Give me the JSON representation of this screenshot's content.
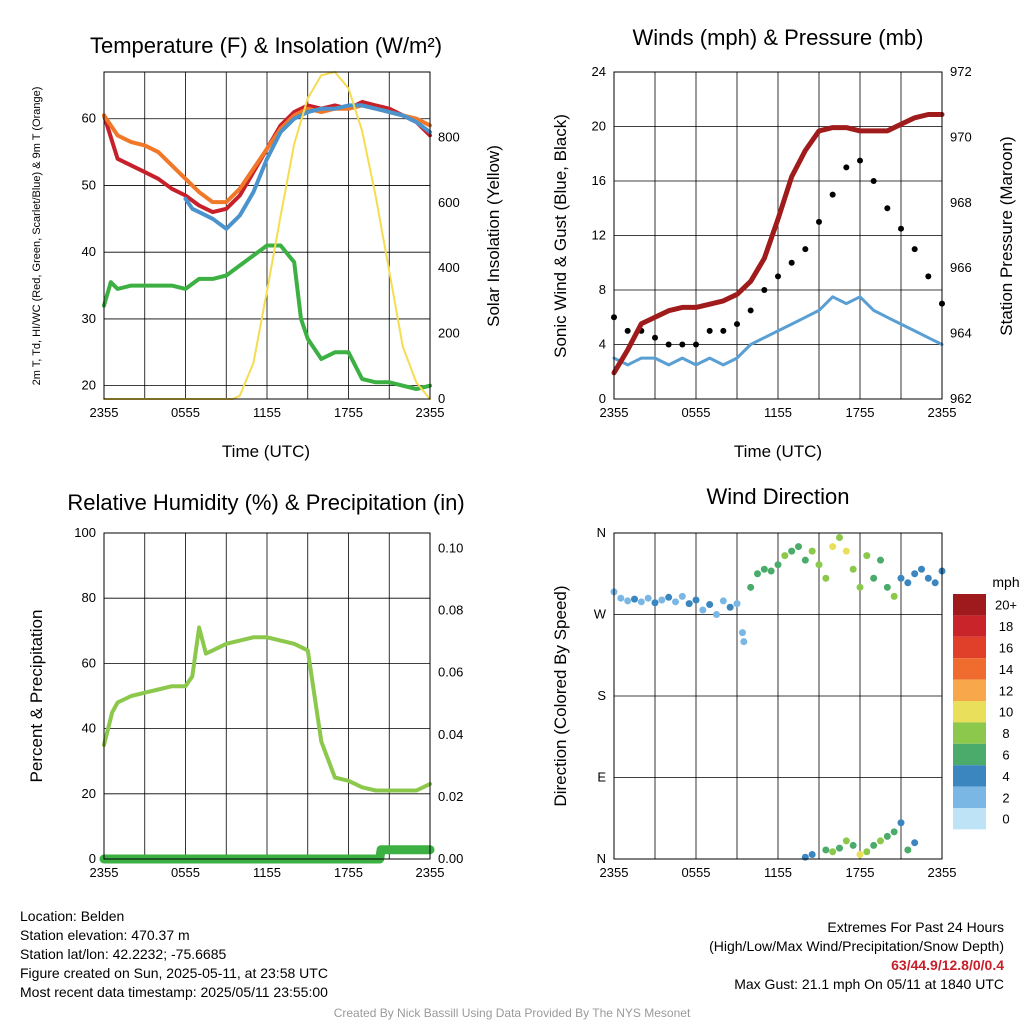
{
  "chart_data": [
    {
      "type": "line",
      "title": "Temperature (F) & Insolation (W/m²)",
      "xlabel": "Time (UTC)",
      "ylabel": "2m T, Td, HI/WC (Red, Green, Scarlet/Blue) & 9m T (Orange)",
      "y2label": "Solar Insolation (Yellow)",
      "x_ticks": [
        "2355",
        "0555",
        "1155",
        "1755",
        "2355"
      ],
      "ylim": [
        18,
        67
      ],
      "y_ticks": [
        20,
        30,
        40,
        50,
        60
      ],
      "y2lim": [
        0,
        1000
      ],
      "y2_ticks": [
        0,
        200,
        400,
        600,
        800
      ],
      "grid": true,
      "series": [
        {
          "color": "#c8202a",
          "axis": "left",
          "x": [
            0,
            1,
            2,
            3,
            4,
            5,
            6,
            7,
            8,
            9,
            10,
            11,
            12,
            13,
            14,
            15,
            16,
            17,
            18,
            19,
            20,
            21,
            22,
            23,
            24
          ],
          "values": [
            60.5,
            54,
            53,
            52,
            51,
            49.5,
            48.5,
            47,
            46,
            46.5,
            48.5,
            52,
            55.5,
            59,
            61,
            62,
            61.5,
            62,
            61.5,
            62.5,
            62,
            61.5,
            60.5,
            59.5,
            57.5
          ]
        },
        {
          "color": "#f07828",
          "axis": "left",
          "x": [
            0,
            1,
            2,
            3,
            4,
            5,
            6,
            7,
            8,
            9,
            10,
            11,
            12,
            13,
            14,
            15,
            16,
            17,
            18,
            19,
            20,
            21,
            22,
            23,
            24
          ],
          "values": [
            60.5,
            57.5,
            56.5,
            56,
            55,
            53,
            51,
            49,
            47.5,
            47.5,
            49.5,
            52.5,
            55.5,
            58.5,
            60.5,
            61.5,
            61,
            61.5,
            61.5,
            62,
            61.5,
            61,
            60.5,
            60,
            59
          ]
        },
        {
          "color": "#4b93cd",
          "axis": "left",
          "x": [
            6,
            6.5,
            7,
            8,
            9,
            10,
            11,
            12,
            13,
            14,
            15,
            16,
            17,
            18,
            19,
            20,
            21,
            22,
            23,
            24
          ],
          "values": [
            48,
            46.5,
            46,
            45,
            43.5,
            45.5,
            49,
            54,
            58,
            60,
            61,
            61.5,
            61.5,
            62,
            62,
            61.5,
            61,
            60.5,
            59.5,
            58
          ]
        },
        {
          "color": "#3cb043",
          "axis": "left",
          "x": [
            0,
            0.5,
            1,
            2,
            3,
            4,
            5,
            6,
            7,
            8,
            9,
            10,
            11,
            12,
            13,
            14,
            14.5,
            15,
            16,
            17,
            18,
            19,
            20,
            21,
            22,
            23,
            24
          ],
          "values": [
            32,
            35.5,
            34.5,
            35,
            35,
            35,
            35,
            34.5,
            36,
            36,
            36.5,
            38,
            39.5,
            41,
            41,
            38.5,
            30,
            27,
            24,
            25,
            25,
            21,
            20.5,
            20.5,
            20,
            19.5,
            20
          ]
        },
        {
          "color": "#f5dc50",
          "axis": "right",
          "x": [
            0,
            9.5,
            10,
            11,
            12,
            13,
            14,
            15,
            16,
            17,
            18,
            19,
            20,
            21,
            22,
            23,
            24
          ],
          "values": [
            0,
            0,
            10,
            110,
            330,
            560,
            780,
            920,
            990,
            1000,
            950,
            820,
            620,
            390,
            160,
            50,
            0
          ]
        }
      ]
    },
    {
      "type": "line",
      "title": "Winds (mph) & Pressure (mb)",
      "xlabel": "Time (UTC)",
      "ylabel": "Sonic Wind & Gust (Blue, Black)",
      "y2label": "Station Pressure (Maroon)",
      "x_ticks": [
        "2355",
        "0555",
        "1155",
        "1755",
        "2355"
      ],
      "ylim": [
        0,
        24
      ],
      "y_ticks": [
        0,
        4,
        8,
        12,
        16,
        20,
        24
      ],
      "y2lim": [
        962,
        972
      ],
      "y2_ticks": [
        962,
        964,
        966,
        968,
        970,
        972
      ],
      "grid": true,
      "series": [
        {
          "name": "",
          "color": "#5a9fd4",
          "axis": "left",
          "x": [
            0,
            1,
            2,
            3,
            4,
            5,
            6,
            7,
            8,
            9,
            10,
            11,
            12,
            13,
            14,
            15,
            16,
            17,
            18,
            19,
            20,
            21,
            22,
            23,
            24
          ],
          "values": [
            3,
            2.5,
            3,
            3,
            2.5,
            3,
            2.5,
            3,
            2.5,
            3,
            4,
            4.5,
            5,
            5.5,
            6,
            6.5,
            7.5,
            7,
            7.5,
            6.5,
            6,
            5.5,
            5,
            4.5,
            4
          ]
        },
        {
          "name": "",
          "color": "#000000",
          "axis": "left",
          "x": [
            0,
            1,
            2,
            3,
            4,
            5,
            6,
            7,
            8,
            9,
            10,
            11,
            12,
            13,
            14,
            15,
            16,
            17,
            18,
            19,
            20,
            21,
            22,
            23,
            24
          ],
          "values": [
            6,
            5,
            5,
            4.5,
            4,
            4,
            4,
            5,
            5,
            5.5,
            6.5,
            8,
            9,
            10,
            11,
            13,
            15,
            17,
            17.5,
            16,
            14,
            12.5,
            11,
            9,
            7
          ]
        },
        {
          "name": "",
          "color": "#a01c1c",
          "axis": "right",
          "x": [
            0,
            1,
            2,
            3,
            4,
            5,
            6,
            7,
            8,
            9,
            10,
            11,
            12,
            13,
            14,
            15,
            16,
            17,
            18,
            19,
            20,
            21,
            22,
            23,
            24
          ],
          "values": [
            962.8,
            963.5,
            964.3,
            964.5,
            964.7,
            964.8,
            964.8,
            964.9,
            965,
            965.2,
            965.6,
            966.3,
            967.5,
            968.8,
            969.6,
            970.2,
            970.3,
            970.3,
            970.2,
            970.2,
            970.2,
            970.4,
            970.6,
            970.7,
            970.7
          ]
        }
      ]
    },
    {
      "type": "line",
      "title": "Relative Humidity (%) & Precipitation (in)",
      "xlabel": "",
      "ylabel": "Percent & Precipitation",
      "x_ticks": [
        "2355",
        "0555",
        "1155",
        "1755",
        "2355"
      ],
      "ylim": [
        0,
        100
      ],
      "y_ticks": [
        0,
        20,
        40,
        60,
        80,
        100
      ],
      "y2lim": [
        0,
        0.105
      ],
      "y2_ticks": [
        "0.00",
        "0.02",
        "0.04",
        "0.06",
        "0.08",
        "0.10"
      ],
      "grid": true,
      "series": [
        {
          "name": "",
          "color": "#8cc84b",
          "axis": "left",
          "x": [
            0,
            0.3,
            0.6,
            1,
            2,
            3,
            4,
            5,
            6,
            6.5,
            7,
            7.5,
            8,
            9,
            10,
            11,
            12,
            13,
            14,
            15,
            16,
            17,
            18,
            19,
            20,
            21,
            22,
            23,
            24
          ],
          "values": [
            35,
            40,
            45,
            48,
            50,
            51,
            52,
            53,
            53,
            56,
            71,
            63,
            64,
            66,
            67,
            68,
            68,
            67,
            66,
            64,
            36,
            25,
            24,
            22,
            21,
            21,
            21,
            21,
            23
          ]
        },
        {
          "name": "",
          "color": "#3cb043",
          "axis": "right",
          "x": [
            0,
            20.3,
            20.4,
            24
          ],
          "values": [
            0,
            0,
            0.003,
            0.003
          ]
        }
      ]
    },
    {
      "type": "scatter",
      "title": "Wind Direction",
      "ylabel": "Direction (Colored By Speed)",
      "x_ticks": [
        "2355",
        "0555",
        "1155",
        "1755",
        "2355"
      ],
      "y_ticks": [
        "N",
        "E",
        "S",
        "W",
        "N"
      ],
      "colorbar": {
        "label": "mph",
        "levels": [
          "20+",
          "18",
          "16",
          "14",
          "12",
          "10",
          "8",
          "6",
          "4",
          "2",
          "0"
        ],
        "colors": [
          "#9e1a1c",
          "#c8242a",
          "#e0402a",
          "#ef6c2e",
          "#f8a84a",
          "#e9df5a",
          "#8cc84b",
          "#4aab6a",
          "#3c86bf",
          "#7ab7e4",
          "#bfe3f6"
        ]
      },
      "points": [
        [
          0,
          295,
          2
        ],
        [
          0.5,
          288,
          2
        ],
        [
          1,
          285,
          2
        ],
        [
          1.5,
          287,
          3
        ],
        [
          2,
          284,
          2
        ],
        [
          2.5,
          288,
          2
        ],
        [
          3,
          283,
          3
        ],
        [
          3.5,
          286,
          2
        ],
        [
          4,
          289,
          3
        ],
        [
          4.5,
          284,
          2
        ],
        [
          5,
          290,
          2
        ],
        [
          5.5,
          282,
          3
        ],
        [
          6,
          286,
          4
        ],
        [
          6.5,
          275,
          2
        ],
        [
          7,
          281,
          3
        ],
        [
          7.5,
          270,
          2
        ],
        [
          8,
          285,
          2
        ],
        [
          8.5,
          278,
          3
        ],
        [
          9,
          282,
          2
        ],
        [
          9.4,
          250,
          1
        ],
        [
          9.5,
          240,
          1
        ],
        [
          10,
          300,
          5
        ],
        [
          10.5,
          315,
          6
        ],
        [
          11,
          320,
          6
        ],
        [
          11.5,
          318,
          5
        ],
        [
          12,
          325,
          6
        ],
        [
          12.5,
          335,
          7
        ],
        [
          13,
          340,
          6
        ],
        [
          13.5,
          345,
          5
        ],
        [
          14,
          330,
          6
        ],
        [
          14.5,
          340,
          7
        ],
        [
          15,
          325,
          7
        ],
        [
          15.5,
          310,
          8
        ],
        [
          16,
          345,
          9
        ],
        [
          16.5,
          355,
          8
        ],
        [
          17,
          340,
          9
        ],
        [
          17.5,
          320,
          8
        ],
        [
          18,
          300,
          7
        ],
        [
          18.5,
          335,
          8
        ],
        [
          19,
          310,
          5
        ],
        [
          19.5,
          330,
          6
        ],
        [
          20,
          300,
          5
        ],
        [
          20.5,
          290,
          8
        ],
        [
          21,
          310,
          4
        ],
        [
          21.5,
          305,
          4
        ],
        [
          22,
          315,
          4
        ],
        [
          22.5,
          320,
          4
        ],
        [
          23,
          310,
          4
        ],
        [
          23.5,
          305,
          3
        ],
        [
          24,
          318,
          4
        ],
        [
          14,
          2,
          4
        ],
        [
          14.5,
          5,
          4
        ],
        [
          15.5,
          10,
          5
        ],
        [
          16,
          8,
          8
        ],
        [
          16.5,
          12,
          6
        ],
        [
          17,
          20,
          7
        ],
        [
          17.5,
          15,
          6
        ],
        [
          18,
          5,
          10
        ],
        [
          18.5,
          8,
          8
        ],
        [
          19,
          15,
          6
        ],
        [
          19.5,
          20,
          7
        ],
        [
          20,
          25,
          5
        ],
        [
          20.5,
          30,
          6
        ],
        [
          21,
          40,
          4
        ],
        [
          21.5,
          10,
          6
        ],
        [
          22,
          18,
          4
        ]
      ]
    }
  ],
  "info": {
    "location": "Location: Belden",
    "elevation": "Station elevation: 470.37 m",
    "latlon": "Station lat/lon: 42.2232; -75.6685",
    "created": "Figure created on Sun, 2025-05-11, at 23:58 UTC",
    "recent": "Most recent data timestamp: 2025/05/11 23:55:00"
  },
  "extremes": {
    "title": "Extremes For Past 24 Hours",
    "subtitle": "(High/Low/Max Wind/Precipitation/Snow Depth)",
    "values": "63/44.9/12.8/0/0.4",
    "gust": "Max Gust: 21.1 mph On 05/11 at 1840 UTC"
  },
  "credit": "Created By Nick Bassill Using Data Provided By The NYS Mesonet"
}
